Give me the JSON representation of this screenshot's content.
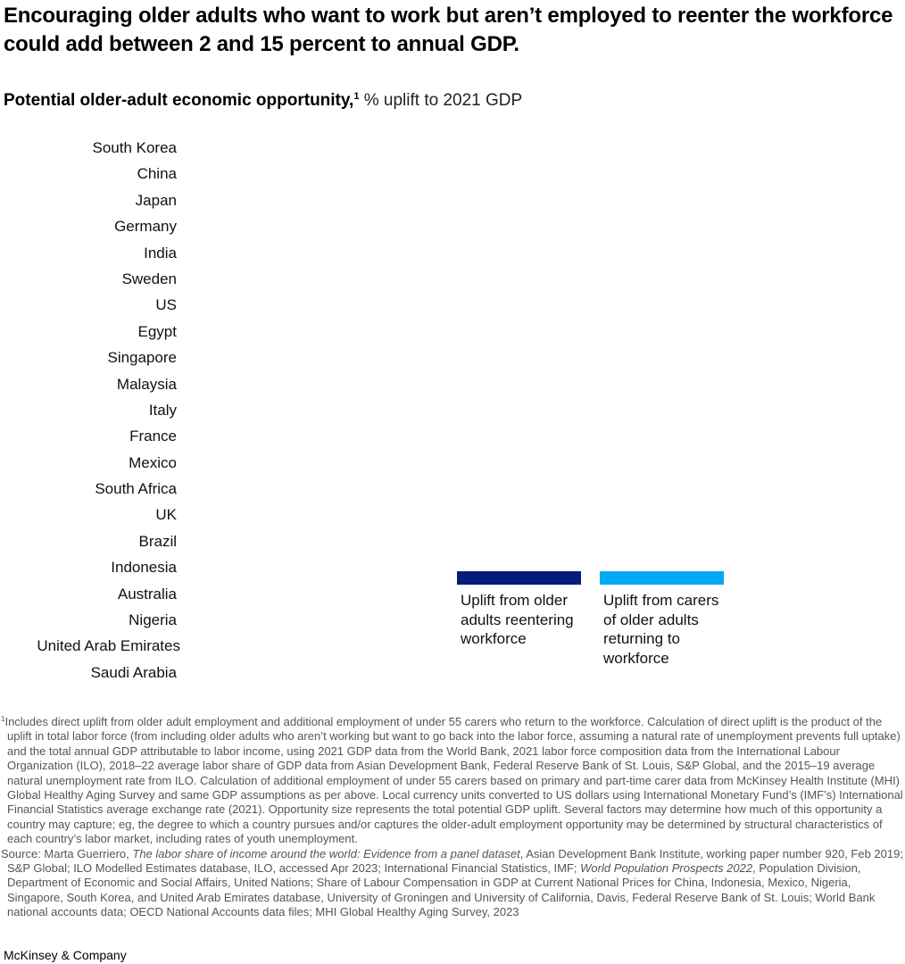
{
  "headline": "Encouraging older adults who want to work but aren’t employed to reenter the workforce could add between 2 and 15 percent to annual GDP.",
  "subtitle": {
    "bold": "Potential older-adult economic opportunity,",
    "footnote_marker": "1",
    "unit": " % uplift to 2021 GDP"
  },
  "colors": {
    "series_older_adults": "#051C7A",
    "series_carers": "#00A9F4",
    "text": "#000000",
    "footnote_text": "#555555"
  },
  "chart_data": {
    "type": "bar",
    "orientation": "horizontal",
    "stacked": true,
    "title": "Potential older-adult economic opportunity, % uplift to 2021 GDP",
    "xlabel": "",
    "ylabel": "",
    "categories": [
      "South Korea",
      "China",
      "Japan",
      "Germany",
      "India",
      "Sweden",
      "US",
      "Egypt",
      "Singapore",
      "Malaysia",
      "Italy",
      "France",
      "Mexico",
      "South Africa",
      "UK",
      "Brazil",
      "Indonesia",
      "Australia",
      "Nigeria",
      "United Arab Emirates",
      "Saudi Arabia"
    ],
    "series": [
      {
        "name": "Uplift from older adults reentering workforce",
        "color": "#051C7A",
        "values": []
      },
      {
        "name": "Uplift from carers of older adults returning to workforce",
        "color": "#00A9F4",
        "values": []
      }
    ],
    "legend_position": "bottom-right, inside plot",
    "grid": false,
    "note": "Bars and value labels are not rendered in the screenshot; only category labels and legend are visible."
  },
  "legend": [
    {
      "label": "Uplift from older adults reentering workforce",
      "color": "#051C7A"
    },
    {
      "label": "Uplift from carers of older adults returning to workforce",
      "color": "#00A9F4"
    }
  ],
  "footnotes": {
    "marker": "1",
    "note1": "Includes direct uplift from older adult employment and additional employment of under 55 carers who return to the workforce. Calculation of direct uplift is the product of the uplift in total labor force (from including older adults who aren’t working but want to go back into the labor force, assuming a natural rate of unemployment prevents full uptake) and the total annual GDP attributable to labor income, using 2021 GDP data from the World Bank, 2021 labor force composition data from the International Labour Organization (ILO), 2018–22 average labor share of GDP data from Asian Development Bank, Federal Reserve Bank of St. Louis, S&P Global, and the 2015–19 average natural unemployment rate from ILO. Calculation of additional employment of under 55 carers based on primary and part-time carer data from McKinsey Health Institute (MHI) Global Healthy Aging Survey and same GDP assumptions as per above. Local currency units converted to US dollars using International Monetary Fund’s (IMF’s) International Financial Statistics average exchange rate (2021). Opportunity size represents the total potential GDP uplift. Several factors may determine how much of this opportunity a country may capture; eg, the degree to which a country pursues and/or captures the older-adult employment opportunity may be determined by structural characteristics of each country’s labor market, including rates of youth unemployment.",
    "source_prefix": "Source: Marta Guerriero, ",
    "source_italic_1": "The labor share of income around the world: Evidence from a panel dataset",
    "source_mid": ", Asian Development Bank Institute, working paper number 920, Feb 2019; S&P Global; ILO Modelled Estimates database, ILO, accessed Apr 2023; International Financial Statistics, IMF; ",
    "source_italic_2": "World Population Prospects 2022",
    "source_end": ", Population Division, Department of Economic and Social Affairs, United Nations; Share of Labour Compensation in GDP at Current National Prices for China, Indonesia, Mexico, Nigeria, Singapore, South Korea, and United Arab Emirates database, University of Groningen and University of California, Davis, Federal Reserve Bank of St. Louis; World Bank national accounts data; OECD National Accounts data files; MHI Global Healthy Aging Survey, 2023"
  },
  "brand": "McKinsey & Company"
}
